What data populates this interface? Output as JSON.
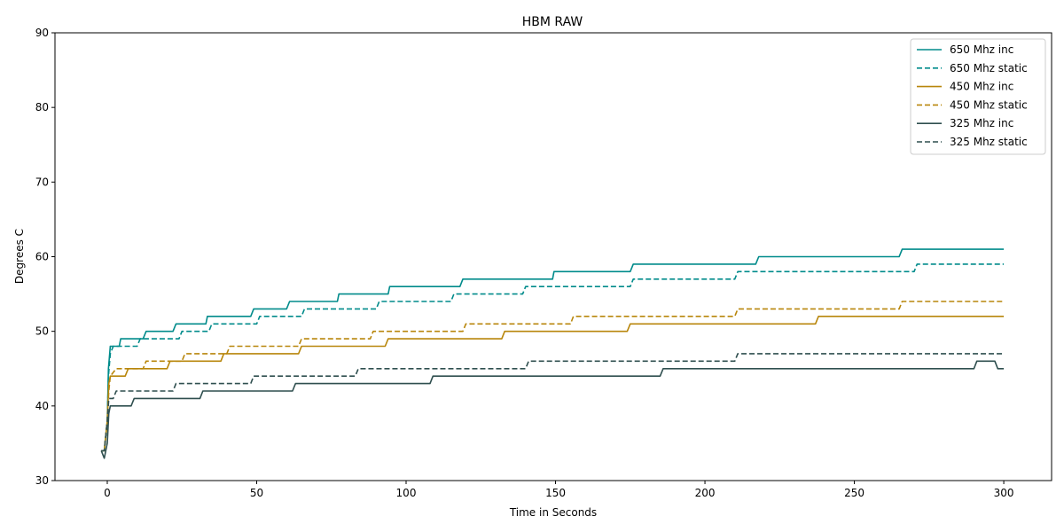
{
  "chart_data": {
    "type": "line",
    "title": "HBM RAW",
    "xlabel": "Time in Seconds",
    "ylabel": "Degrees C",
    "xlim": [
      -17.5,
      316
    ],
    "ylim": [
      30,
      90
    ],
    "xticks": [
      0,
      50,
      100,
      150,
      200,
      250,
      300
    ],
    "yticks": [
      30,
      40,
      50,
      60,
      70,
      80,
      90
    ],
    "grid": false,
    "legend_position": "top-right",
    "series": [
      {
        "name": "650 Mhz inc",
        "color": "#008b8b",
        "style": "solid",
        "points": [
          [
            -2,
            34
          ],
          [
            -1,
            34
          ],
          [
            0,
            38
          ],
          [
            0.4,
            45
          ],
          [
            0.8,
            47
          ],
          [
            1,
            48
          ],
          [
            4,
            48
          ],
          [
            4.5,
            49
          ],
          [
            12,
            49
          ],
          [
            13,
            50
          ],
          [
            22,
            50
          ],
          [
            23,
            51
          ],
          [
            33,
            51
          ],
          [
            33.5,
            52
          ],
          [
            48,
            52
          ],
          [
            49,
            53
          ],
          [
            60,
            53
          ],
          [
            61,
            54
          ],
          [
            77,
            54
          ],
          [
            77.5,
            55
          ],
          [
            94,
            55
          ],
          [
            94.5,
            56
          ],
          [
            108,
            56
          ],
          [
            109,
            56
          ],
          [
            110,
            56
          ],
          [
            118,
            56
          ],
          [
            119,
            57
          ],
          [
            149,
            57
          ],
          [
            149.5,
            58
          ],
          [
            175,
            58
          ],
          [
            176,
            59
          ],
          [
            186,
            59
          ],
          [
            187,
            59
          ],
          [
            217,
            59
          ],
          [
            218,
            60
          ],
          [
            236,
            60
          ],
          [
            237,
            60
          ],
          [
            265,
            60
          ],
          [
            266,
            61
          ],
          [
            300,
            61
          ]
        ]
      },
      {
        "name": "650 Mhz static",
        "color": "#008b8b",
        "style": "dashed",
        "points": [
          [
            -2,
            34
          ],
          [
            -1,
            34
          ],
          [
            0,
            38
          ],
          [
            0.4,
            44
          ],
          [
            1,
            47
          ],
          [
            2,
            48
          ],
          [
            10,
            48
          ],
          [
            11,
            49
          ],
          [
            24,
            49
          ],
          [
            25,
            50
          ],
          [
            34,
            50
          ],
          [
            35,
            51
          ],
          [
            50,
            51
          ],
          [
            51,
            52
          ],
          [
            65,
            52
          ],
          [
            66,
            53
          ],
          [
            90,
            53
          ],
          [
            91,
            54
          ],
          [
            115,
            54
          ],
          [
            116,
            55
          ],
          [
            139,
            55
          ],
          [
            140,
            56
          ],
          [
            175,
            56
          ],
          [
            176,
            57
          ],
          [
            210,
            57
          ],
          [
            211,
            58
          ],
          [
            270,
            58
          ],
          [
            271,
            59
          ],
          [
            300,
            59
          ]
        ]
      },
      {
        "name": "450 Mhz inc",
        "color": "#b8860b",
        "style": "solid",
        "points": [
          [
            -2,
            34
          ],
          [
            -1,
            34
          ],
          [
            0,
            38
          ],
          [
            0.5,
            43
          ],
          [
            1,
            44
          ],
          [
            6,
            44
          ],
          [
            7,
            45
          ],
          [
            20,
            45
          ],
          [
            21,
            46
          ],
          [
            38,
            46
          ],
          [
            39,
            47
          ],
          [
            64,
            47
          ],
          [
            65,
            48
          ],
          [
            93,
            48
          ],
          [
            94,
            49
          ],
          [
            132,
            49
          ],
          [
            133,
            50
          ],
          [
            174,
            50
          ],
          [
            175,
            51
          ],
          [
            237,
            51
          ],
          [
            238,
            52
          ],
          [
            300,
            52
          ]
        ]
      },
      {
        "name": "450 Mhz static",
        "color": "#b8860b",
        "style": "dashed",
        "points": [
          [
            -2,
            34
          ],
          [
            -1,
            34
          ],
          [
            0,
            38
          ],
          [
            0.5,
            42
          ],
          [
            1,
            44
          ],
          [
            3,
            45
          ],
          [
            12,
            45
          ],
          [
            13,
            46
          ],
          [
            25,
            46
          ],
          [
            26,
            47
          ],
          [
            40,
            47
          ],
          [
            41,
            48
          ],
          [
            64,
            48
          ],
          [
            65,
            49
          ],
          [
            88,
            49
          ],
          [
            89,
            50
          ],
          [
            119,
            50
          ],
          [
            120,
            51
          ],
          [
            155,
            51
          ],
          [
            156,
            52
          ],
          [
            210,
            52
          ],
          [
            211,
            53
          ],
          [
            265,
            53
          ],
          [
            266,
            54
          ],
          [
            300,
            54
          ]
        ]
      },
      {
        "name": "325 Mhz inc",
        "color": "#2f4f4f",
        "style": "solid",
        "points": [
          [
            -2,
            34
          ],
          [
            -1,
            33
          ],
          [
            0,
            35
          ],
          [
            0.5,
            39
          ],
          [
            1,
            40
          ],
          [
            8,
            40
          ],
          [
            9,
            41
          ],
          [
            31,
            41
          ],
          [
            32,
            42
          ],
          [
            62,
            42
          ],
          [
            63,
            43
          ],
          [
            108,
            43
          ],
          [
            109,
            44
          ],
          [
            185,
            44
          ],
          [
            186,
            45
          ],
          [
            290,
            45
          ],
          [
            291,
            46
          ],
          [
            297,
            46
          ],
          [
            298,
            45
          ],
          [
            300,
            45
          ]
        ]
      },
      {
        "name": "325 Mhz static",
        "color": "#2f4f4f",
        "style": "dashed",
        "points": [
          [
            -2,
            34
          ],
          [
            -1,
            34
          ],
          [
            0,
            38
          ],
          [
            0.5,
            41
          ],
          [
            2,
            41
          ],
          [
            3,
            42
          ],
          [
            22,
            42
          ],
          [
            23,
            43
          ],
          [
            48,
            43
          ],
          [
            49,
            44
          ],
          [
            83,
            44
          ],
          [
            84,
            45
          ],
          [
            140,
            45
          ],
          [
            141,
            46
          ],
          [
            210,
            46
          ],
          [
            211,
            47
          ],
          [
            300,
            47
          ]
        ]
      }
    ]
  }
}
